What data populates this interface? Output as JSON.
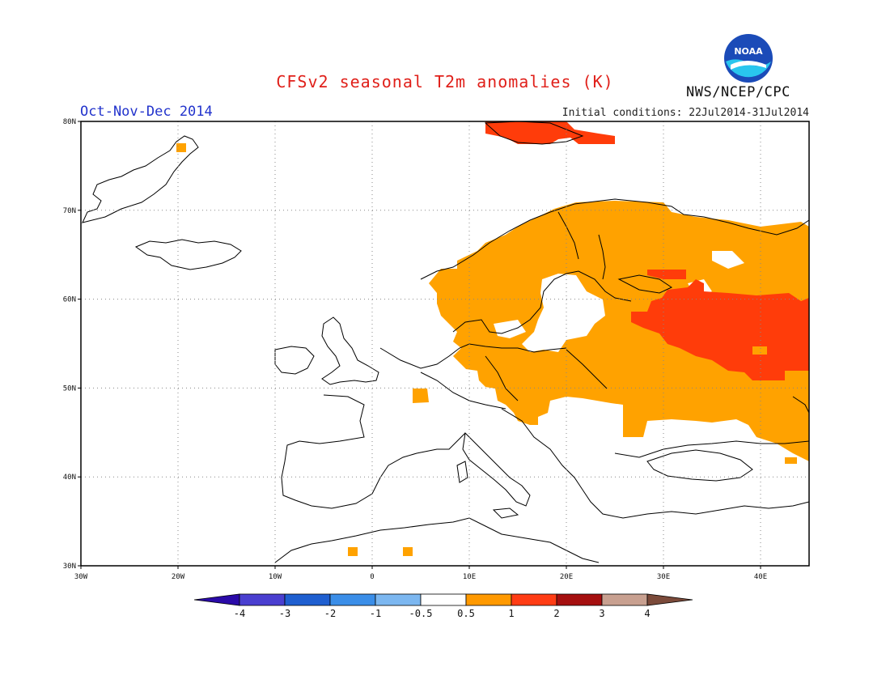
{
  "header": {
    "title": "CFSv2 seasonal T2m anomalies (K)",
    "period": "Oct-Nov-Dec 2014",
    "init_conditions": "Initial conditions: 22Jul2014-31Jul2014",
    "agency": "NWS/NCEP/CPC",
    "logo_text": "NOAA"
  },
  "map": {
    "lon_range": [
      -30,
      45
    ],
    "lat_range": [
      30,
      80
    ],
    "lon_ticks": [
      "30W",
      "20W",
      "10W",
      "0",
      "10E",
      "20E",
      "30E",
      "40E"
    ],
    "lat_ticks": [
      "30N",
      "40N",
      "50N",
      "60N",
      "70N",
      "80N"
    ],
    "gridlines": "dotted"
  },
  "colorbar": {
    "labels": [
      "-4",
      "-3",
      "-2",
      "-1",
      "-0.5",
      "0.5",
      "1",
      "2",
      "3",
      "4"
    ],
    "colors": [
      "#2a0aa8",
      "#4a3fd0",
      "#1f5fd0",
      "#3b8ee8",
      "#7cb7f0",
      "#ffffff",
      "#ff9900",
      "#ff3c14",
      "#a50f0f",
      "#c8a090",
      "#7b4a3a"
    ]
  },
  "colors": {
    "anomaly_05_1": "#ffa200",
    "anomaly_1_2": "#ff3c0a",
    "coast": "#000000"
  }
}
